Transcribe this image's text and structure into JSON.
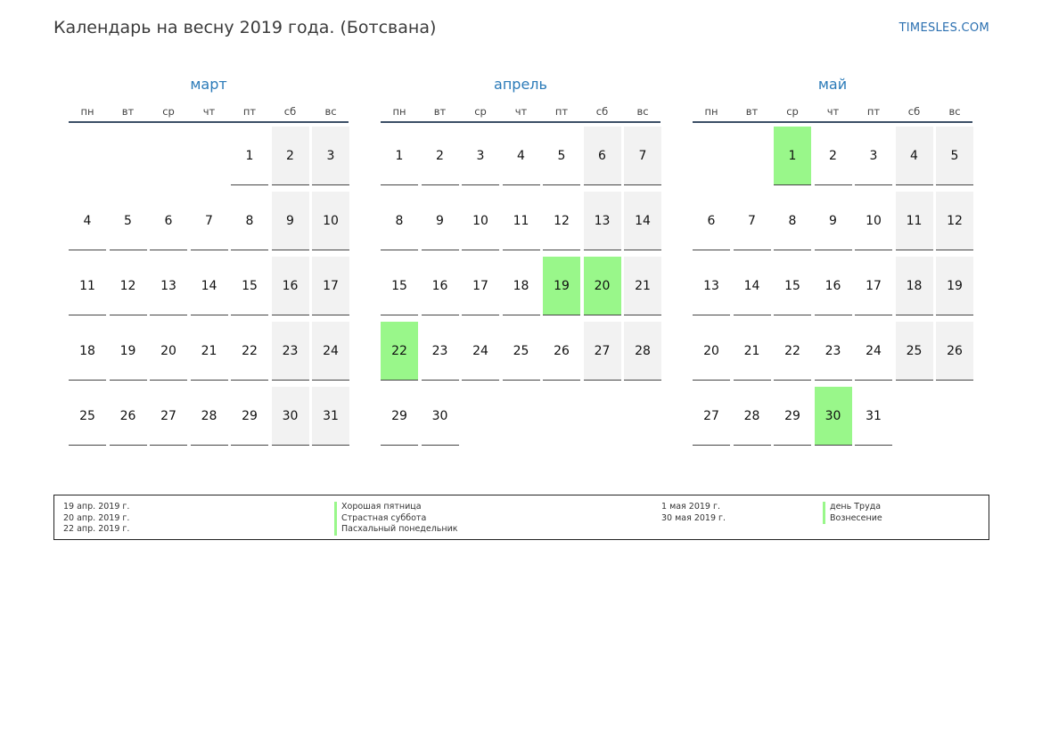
{
  "header": {
    "title": "Календарь на весну 2019 года. (Ботсвана)",
    "site": "TIMESLES.COM"
  },
  "weekdays": [
    "пн",
    "вт",
    "ср",
    "чт",
    "пт",
    "сб",
    "вс"
  ],
  "colors": {
    "holiday": "#99f78a",
    "weekend": "#f2f2f2",
    "accent": "#2a7ab8"
  },
  "months": [
    {
      "name": "март",
      "first_weekday": 4,
      "days_count": 31,
      "holidays": []
    },
    {
      "name": "апрель",
      "first_weekday": 0,
      "days_count": 30,
      "holidays": [
        19,
        20,
        22
      ]
    },
    {
      "name": "май",
      "first_weekday": 2,
      "days_count": 31,
      "holidays": [
        1,
        30
      ]
    }
  ],
  "legend": {
    "left": [
      {
        "date": "19 апр. 2019 г.",
        "name": "Хорошая пятница"
      },
      {
        "date": "20 апр. 2019 г.",
        "name": "Страстная суббота"
      },
      {
        "date": "22 апр. 2019 г.",
        "name": "Пасхальный понедельник"
      }
    ],
    "right": [
      {
        "date": "1 мая 2019 г.",
        "name": "день Труда"
      },
      {
        "date": "30 мая 2019 г.",
        "name": "Вознесение"
      }
    ]
  }
}
